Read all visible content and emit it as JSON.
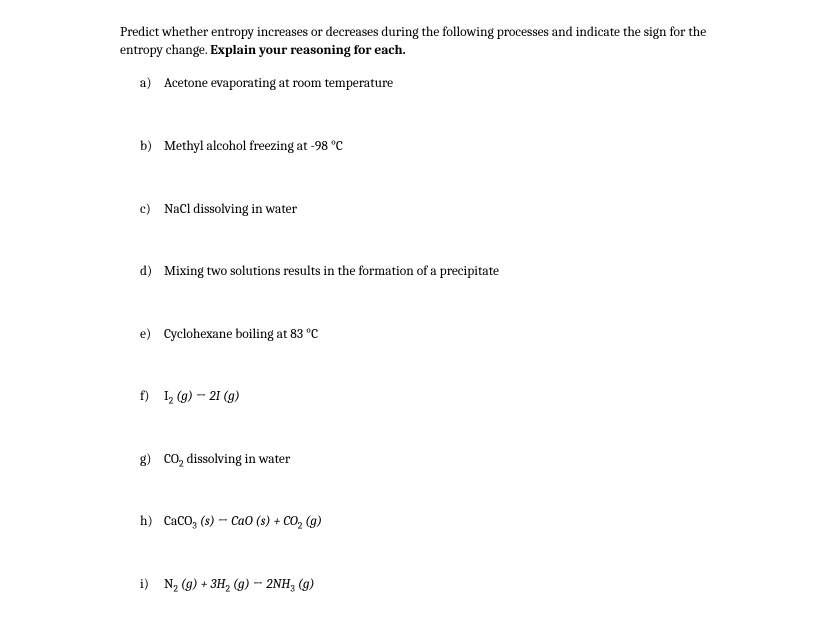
{
  "prompt": {
    "line1": "Predict whether entropy increases or decreases during the following processes and indicate the",
    "line2_pre": "sign for the entropy change. ",
    "line2_bold": "Explain your reasoning for each."
  },
  "items": {
    "a": {
      "label": "a)",
      "text_plain": "Acetone evaporating at room temperature"
    },
    "b": {
      "label": "b)",
      "text_plain": "Methyl alcohol freezing at -98 °C"
    },
    "c": {
      "label": "c)",
      "text_plain": "NaCl dissolving in water"
    },
    "d": {
      "label": "d)",
      "text_plain": "Mixing two solutions results in the formation of a precipitate"
    },
    "e": {
      "label": "e)",
      "text_plain": "Cyclohexane boiling at 83 °C"
    },
    "f": {
      "label": "f)",
      "p1": "I",
      "s1": "2",
      "p2": " (g) ",
      "arrow": "→",
      "p3": " 2I (g)"
    },
    "g": {
      "label": "g)",
      "p1": "CO",
      "s1": "2",
      "p2": " dissolving in water"
    },
    "h": {
      "label": "h)",
      "p1": "CaCO",
      "s1": "3",
      "p2": " (s) ",
      "arrow": "→",
      "p3": " CaO (s) + CO",
      "s2": "2",
      "p4": " (g)"
    },
    "i": {
      "label": "i)",
      "p1": "N",
      "s1": "2",
      "p2": " (g) + 3H",
      "s2": "2",
      "p3": " (g) ",
      "arrow": "→",
      "p4": " 2NH",
      "s3": "3",
      "p5": " (g)"
    }
  },
  "colors": {
    "text": "#000000",
    "bg": "#ffffff"
  }
}
